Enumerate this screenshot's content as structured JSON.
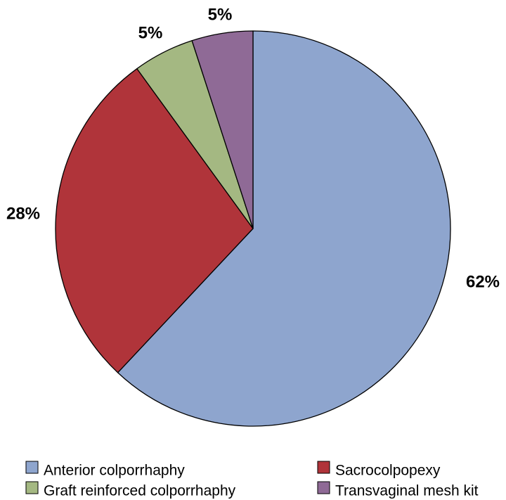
{
  "chart_data": {
    "type": "pie",
    "start_angle_deg": 0,
    "direction": "clockwise",
    "legend_position": "bottom",
    "slices": [
      {
        "name": "Anterior colporrhaphy",
        "value": 62,
        "label": "62%",
        "color": "#8EA5CE"
      },
      {
        "name": "Sacrocolpopexy",
        "value": 28,
        "label": "28%",
        "color": "#B0343A"
      },
      {
        "name": "Graft reinforced colporrhaphy",
        "value": 5,
        "label": "5%",
        "color": "#A4B882"
      },
      {
        "name": "Transvaginal mesh kit",
        "value": 5,
        "label": "5%",
        "color": "#8F6A96"
      }
    ]
  }
}
